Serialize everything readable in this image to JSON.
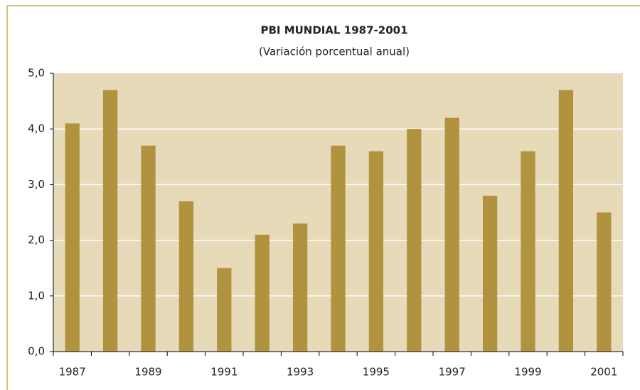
{
  "chart_data": {
    "type": "bar",
    "title": "PBI MUNDIAL 1987-2001",
    "subtitle": "(Variación porcentual anual)",
    "categories": [
      "1987",
      null,
      "1989",
      null,
      "1991",
      null,
      "1993",
      null,
      "1995",
      null,
      "1997",
      null,
      "1999",
      null,
      "2001"
    ],
    "values": [
      4.1,
      4.7,
      3.7,
      2.7,
      1.5,
      2.1,
      2.3,
      3.7,
      3.6,
      4.0,
      4.2,
      2.8,
      3.6,
      4.7,
      2.5
    ],
    "color": "#b0923f",
    "ylim": [
      0,
      5
    ],
    "yticks": [
      {
        "value": 0,
        "label": "0,0"
      },
      {
        "value": 1,
        "label": "1,0"
      },
      {
        "value": 2,
        "label": "2,0"
      },
      {
        "value": 3,
        "label": "3,0"
      },
      {
        "value": 4,
        "label": "4,0"
      },
      {
        "value": 5,
        "label": "5,0"
      }
    ],
    "grid": true
  }
}
